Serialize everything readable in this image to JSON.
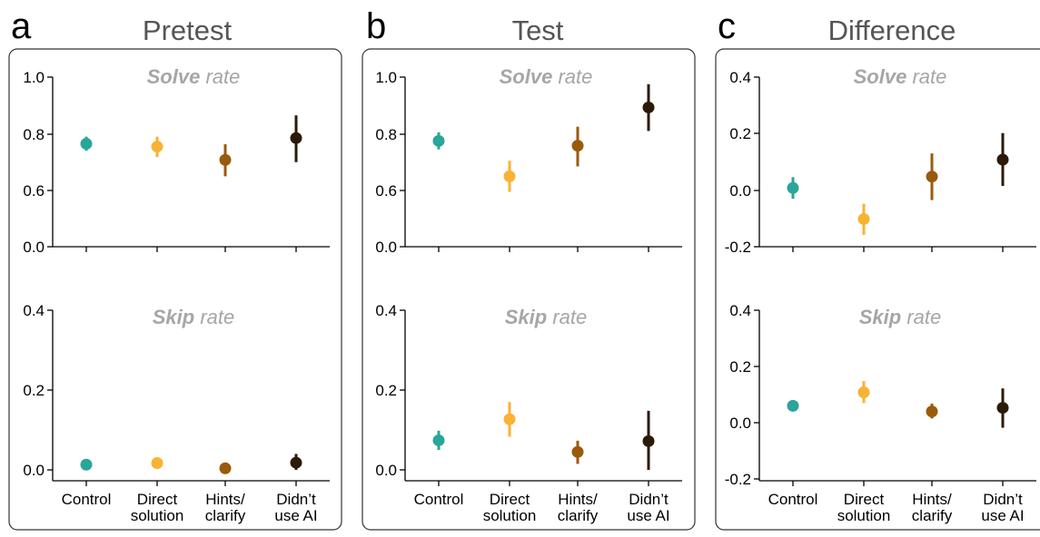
{
  "chart_data": [
    {
      "type": "scatter",
      "panel": "a",
      "title": "Pretest",
      "categories": [
        "Control",
        "Direct solution",
        "Hints/ clarify",
        "Didn't use AI"
      ],
      "category_lines": [
        [
          "Control"
        ],
        [
          "Direct",
          "solution"
        ],
        [
          "Hints/",
          "clarify"
        ],
        [
          "Didn’t",
          "use AI"
        ]
      ],
      "colors": [
        "#2aa59a",
        "#f9b234",
        "#9a5a0c",
        "#2b1a08"
      ],
      "subplots": [
        {
          "title_bold": "Solve",
          "title_rest": " rate",
          "yticks": [
            "1.0",
            "0.8",
            "0.6",
            "0.0"
          ],
          "y_broken": true,
          "ylim": [
            0.6,
            1.0
          ],
          "values": [
            0.765,
            0.755,
            0.708,
            0.785
          ],
          "err_low": [
            0.74,
            0.718,
            0.65,
            0.7
          ],
          "err_high": [
            0.79,
            0.79,
            0.763,
            0.865
          ]
        },
        {
          "title_bold": "Skip",
          "title_rest": " rate",
          "yticks": [
            "0.4",
            "0.2",
            "0.0"
          ],
          "ylim": [
            0.0,
            0.4
          ],
          "values": [
            0.013,
            0.017,
            0.004,
            0.018
          ],
          "err_low": [
            0.008,
            0.012,
            0.0,
            0.0
          ],
          "err_high": [
            0.018,
            0.022,
            0.008,
            0.04
          ]
        }
      ]
    },
    {
      "type": "scatter",
      "panel": "b",
      "title": "Test",
      "categories": [
        "Control",
        "Direct solution",
        "Hints/ clarify",
        "Didn't use AI"
      ],
      "category_lines": [
        [
          "Control"
        ],
        [
          "Direct",
          "solution"
        ],
        [
          "Hints/",
          "clarify"
        ],
        [
          "Didn’t",
          "use AI"
        ]
      ],
      "colors": [
        "#2aa59a",
        "#f9b234",
        "#9a5a0c",
        "#2b1a08"
      ],
      "subplots": [
        {
          "title_bold": "Solve",
          "title_rest": " rate",
          "yticks": [
            "1.0",
            "0.8",
            "0.6",
            "0.0"
          ],
          "y_broken": true,
          "ylim": [
            0.6,
            1.0
          ],
          "values": [
            0.775,
            0.65,
            0.758,
            0.893
          ],
          "err_low": [
            0.745,
            0.595,
            0.685,
            0.81
          ],
          "err_high": [
            0.805,
            0.705,
            0.825,
            0.975
          ]
        },
        {
          "title_bold": "Skip",
          "title_rest": " rate",
          "yticks": [
            "0.4",
            "0.2",
            "0.0"
          ],
          "ylim": [
            0.0,
            0.4
          ],
          "values": [
            0.074,
            0.127,
            0.045,
            0.072
          ],
          "err_low": [
            0.05,
            0.083,
            0.015,
            0.0
          ],
          "err_high": [
            0.098,
            0.17,
            0.073,
            0.148
          ]
        }
      ]
    },
    {
      "type": "scatter",
      "panel": "c",
      "title": "Difference",
      "categories": [
        "Control",
        "Direct solution",
        "Hints/ clarify",
        "Didn't use AI"
      ],
      "category_lines": [
        [
          "Control"
        ],
        [
          "Direct",
          "solution"
        ],
        [
          "Hints/",
          "clarify"
        ],
        [
          "Didn’t",
          "use AI"
        ]
      ],
      "colors": [
        "#2aa59a",
        "#f9b234",
        "#9a5a0c",
        "#2b1a08"
      ],
      "subplots": [
        {
          "title_bold": "Solve",
          "title_rest": " rate",
          "yticks": [
            "0.4",
            "0.2",
            "0.0",
            "-0.2"
          ],
          "ylim": [
            -0.2,
            0.4
          ],
          "values": [
            0.008,
            -0.102,
            0.048,
            0.108
          ],
          "err_low": [
            -0.03,
            -0.158,
            -0.035,
            0.015
          ],
          "err_high": [
            0.046,
            -0.048,
            0.13,
            0.202
          ]
        },
        {
          "title_bold": "Skip",
          "title_rest": " rate",
          "yticks": [
            "0.4",
            "0.2",
            "0.0",
            "-0.2"
          ],
          "ylim": [
            -0.2,
            0.4
          ],
          "values": [
            0.06,
            0.108,
            0.04,
            0.053
          ],
          "err_low": [
            0.04,
            0.07,
            0.015,
            -0.018
          ],
          "err_high": [
            0.08,
            0.148,
            0.068,
            0.122
          ]
        }
      ]
    }
  ]
}
